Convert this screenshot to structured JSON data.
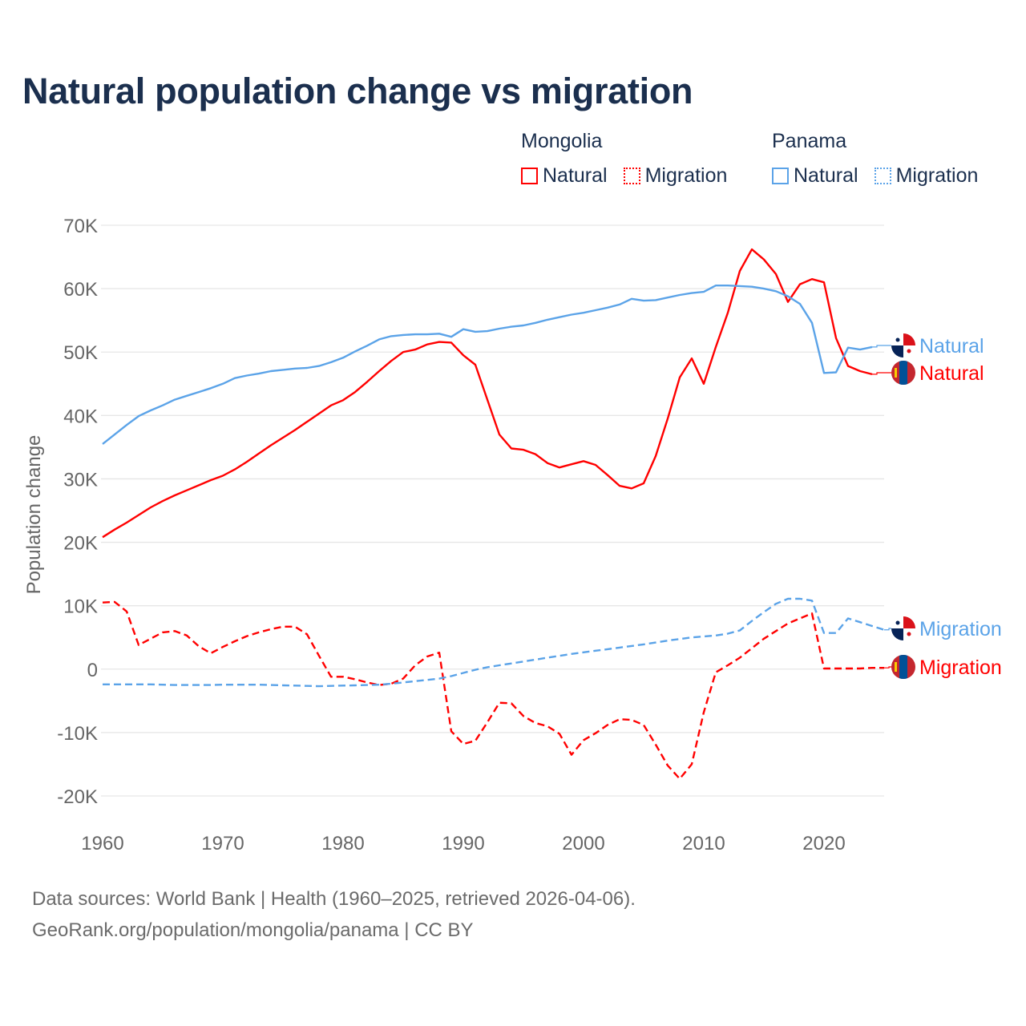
{
  "chart_data": {
    "type": "line",
    "title": "Natural population change vs migration",
    "ylabel": "Population change",
    "xlabel": "",
    "ylim": [
      -20000,
      70000
    ],
    "xlim": [
      1960,
      2025
    ],
    "y_ticks": [
      {
        "v": 70000,
        "label": "70K"
      },
      {
        "v": 60000,
        "label": "60K"
      },
      {
        "v": 50000,
        "label": "50K"
      },
      {
        "v": 40000,
        "label": "40K"
      },
      {
        "v": 30000,
        "label": "30K"
      },
      {
        "v": 20000,
        "label": "20K"
      },
      {
        "v": 10000,
        "label": "10K"
      },
      {
        "v": 0,
        "label": "0"
      },
      {
        "v": -10000,
        "label": "-10K"
      },
      {
        "v": -20000,
        "label": "-20K"
      }
    ],
    "x_ticks": [
      {
        "v": 1960,
        "label": "1960"
      },
      {
        "v": 1970,
        "label": "1970"
      },
      {
        "v": 1980,
        "label": "1980"
      },
      {
        "v": 1990,
        "label": "1990"
      },
      {
        "v": 2000,
        "label": "2000"
      },
      {
        "v": 2010,
        "label": "2010"
      },
      {
        "v": 2020,
        "label": "2020"
      }
    ],
    "grid": true,
    "legend_position": "top-right",
    "start_year": 1960,
    "series": [
      {
        "country": "Mongolia",
        "name": "Natural",
        "end_label": "Natural",
        "color": "#ff0000",
        "dash": false,
        "flag": "mongolia",
        "values": [
          20800,
          22000,
          23100,
          24300,
          25500,
          26500,
          27400,
          28200,
          29000,
          29800,
          30500,
          31500,
          32700,
          34000,
          35300,
          36500,
          37700,
          39000,
          40300,
          41600,
          42400,
          43700,
          45300,
          47000,
          48600,
          50000,
          50400,
          51200,
          51600,
          51500,
          49500,
          48000,
          42500,
          37000,
          34800,
          34600,
          33900,
          32500,
          31800,
          32300,
          32800,
          32200,
          30600,
          28900,
          28500,
          29300,
          33600,
          39500,
          46000,
          49000,
          45000,
          50800,
          56200,
          62800,
          66200,
          64600,
          62300,
          57900,
          60700,
          61500,
          61000,
          52200,
          47800,
          47000,
          46500
        ]
      },
      {
        "country": "Mongolia",
        "name": "Migration",
        "end_label": "Migration",
        "color": "#ff0000",
        "dash": true,
        "flag": "mongolia",
        "values": [
          10500,
          10600,
          9100,
          3800,
          4800,
          5800,
          6000,
          5300,
          3600,
          2500,
          3500,
          4400,
          5200,
          5800,
          6300,
          6700,
          6700,
          5500,
          2100,
          -1200,
          -1200,
          -1600,
          -2100,
          -2500,
          -2300,
          -1500,
          600,
          2000,
          2600,
          -9800,
          -11800,
          -11300,
          -8400,
          -5300,
          -5400,
          -7400,
          -8500,
          -9000,
          -10200,
          -13500,
          -11200,
          -10100,
          -8800,
          -7900,
          -8000,
          -8800,
          -11900,
          -15200,
          -17300,
          -15000,
          -6800,
          -500,
          600,
          1800,
          3300,
          4800,
          6000,
          7200,
          8000,
          8800,
          100,
          100,
          100,
          100,
          200,
          200
        ]
      },
      {
        "country": "Panama",
        "name": "Natural",
        "end_label": "Natural",
        "color": "#5ba3e8",
        "dash": false,
        "flag": "panama",
        "values": [
          35500,
          37000,
          38500,
          39900,
          40800,
          41600,
          42500,
          43100,
          43700,
          44300,
          45000,
          45900,
          46300,
          46600,
          47000,
          47200,
          47400,
          47500,
          47800,
          48400,
          49100,
          50100,
          51000,
          52000,
          52500,
          52700,
          52800,
          52800,
          52900,
          52400,
          53600,
          53200,
          53300,
          53700,
          54000,
          54200,
          54600,
          55100,
          55500,
          55900,
          56200,
          56600,
          57000,
          57500,
          58400,
          58100,
          58200,
          58600,
          59000,
          59300,
          59500,
          60500,
          60500,
          60400,
          60300,
          60000,
          59600,
          58800,
          57600,
          54600,
          46700,
          46800,
          50700,
          50400,
          50800
        ]
      },
      {
        "country": "Panama",
        "name": "Migration",
        "end_label": "Migration",
        "color": "#5ba3e8",
        "dash": true,
        "flag": "panama",
        "values": [
          -2400,
          -2400,
          -2400,
          -2400,
          -2400,
          -2450,
          -2500,
          -2500,
          -2500,
          -2500,
          -2450,
          -2450,
          -2450,
          -2450,
          -2500,
          -2550,
          -2600,
          -2650,
          -2700,
          -2650,
          -2600,
          -2550,
          -2500,
          -2450,
          -2300,
          -2100,
          -1900,
          -1700,
          -1500,
          -1100,
          -600,
          -100,
          300,
          600,
          900,
          1200,
          1500,
          1800,
          2100,
          2400,
          2650,
          2900,
          3150,
          3400,
          3650,
          3900,
          4200,
          4500,
          4750,
          5000,
          5150,
          5300,
          5600,
          6100,
          7600,
          9000,
          10300,
          11100,
          11100,
          10800,
          5700,
          5700,
          8000,
          7400,
          6800,
          6200
        ]
      }
    ],
    "legend": {
      "groups": [
        {
          "country": "Mongolia",
          "items": [
            {
              "label": "Natural",
              "style": "solid"
            },
            {
              "label": "Migration",
              "style": "dotted"
            }
          ]
        },
        {
          "country": "Panama",
          "items": [
            {
              "label": "Natural",
              "style": "solid"
            },
            {
              "label": "Migration",
              "style": "dotted"
            }
          ]
        }
      ]
    },
    "colors": {
      "mongolia": "#ff0000",
      "panama": "#5ba3e8",
      "grid": "#e6e6e6",
      "axis_text": "#666666",
      "title": "#1b2f4e"
    }
  },
  "footer": {
    "line1": "Data sources: World Bank | Health (1960–2025, retrieved 2026-04-06).",
    "line2": "GeoRank.org/population/mongolia/panama | CC BY"
  }
}
